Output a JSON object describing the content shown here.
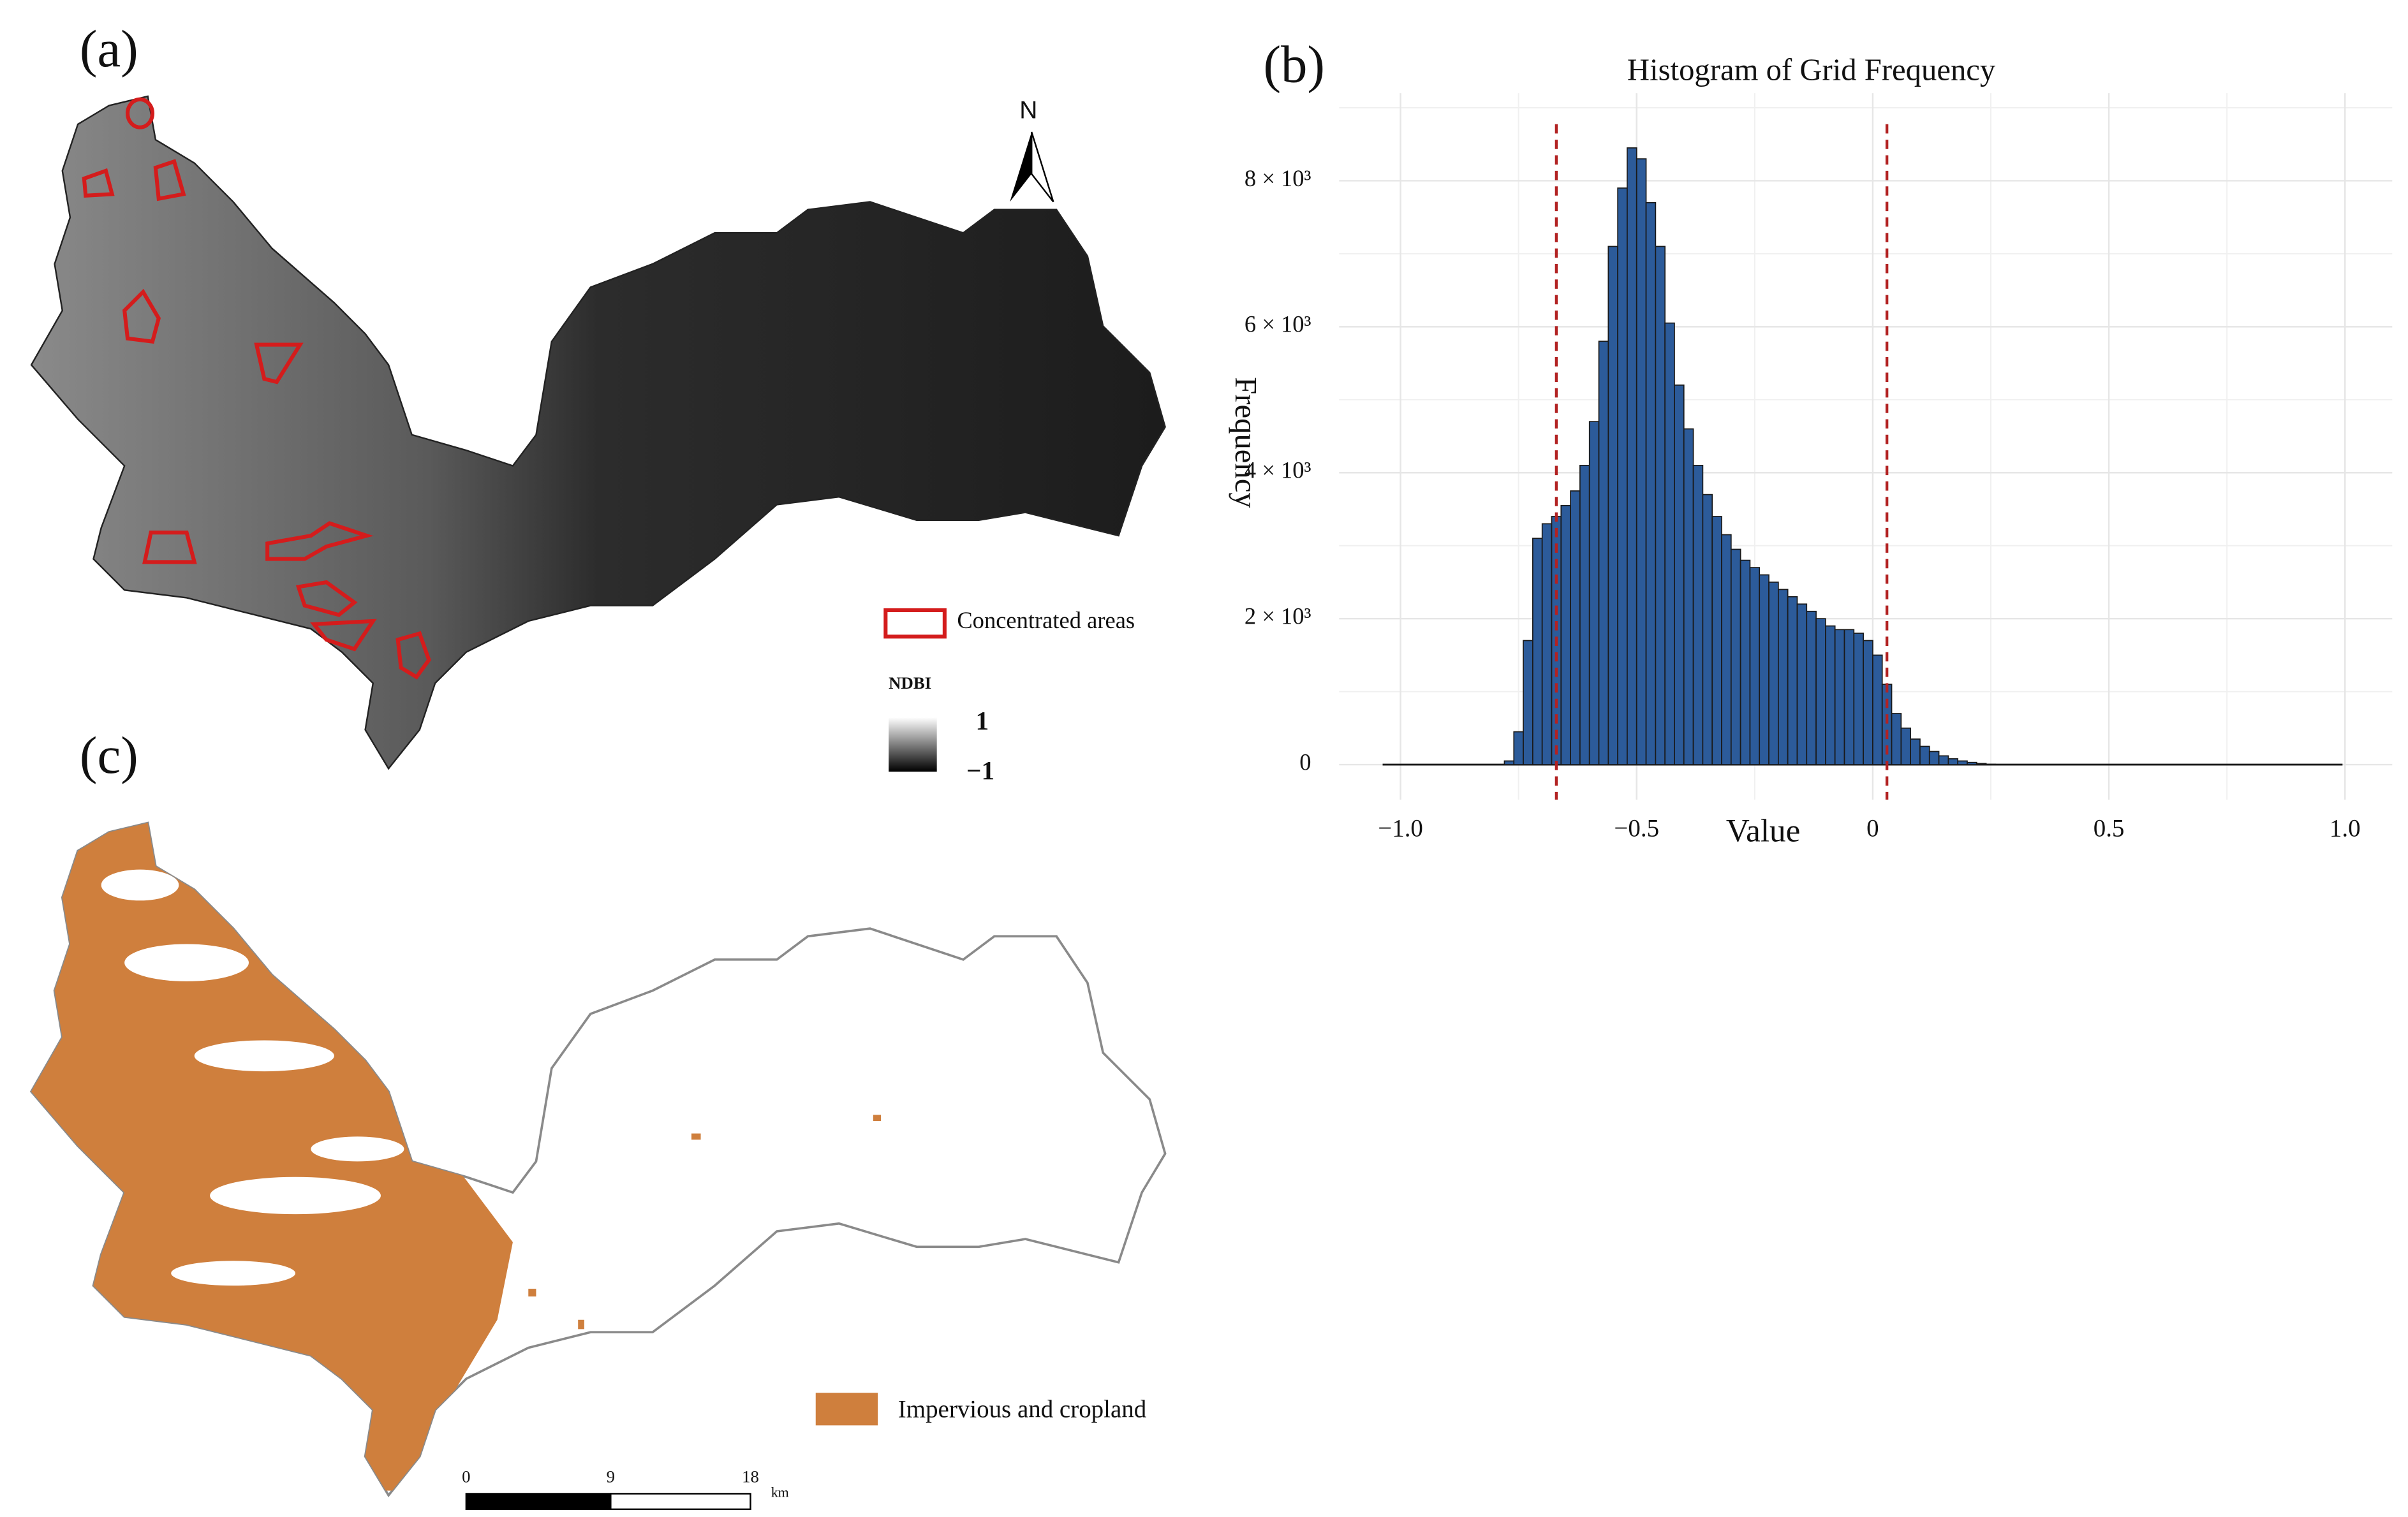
{
  "panel_labels": [
    "(a)",
    "(b)",
    "(c)"
  ],
  "map_a": {
    "north": "N",
    "legend": "Concentrated areas",
    "ndbi_title": "NDBI",
    "ndbi_max": "1",
    "ndbi_min": "−1"
  },
  "map_c": {
    "legend": "Impervious and cropland",
    "scale_labels": [
      "0",
      "9",
      "18"
    ],
    "scale_unit": "km"
  },
  "chart_data": {
    "type": "histogram",
    "title": "Histogram of Grid Frequency",
    "xlabel": "Value",
    "ylabel": "Frequency",
    "bins": [
      -0.78,
      -0.76,
      -0.74,
      -0.72,
      -0.7,
      -0.68,
      -0.66,
      -0.64,
      -0.62,
      -0.6,
      -0.58,
      -0.56,
      -0.54,
      -0.52,
      -0.5,
      -0.48,
      -0.46,
      -0.44,
      -0.42,
      -0.4,
      -0.38,
      -0.36,
      -0.34,
      -0.32,
      -0.3,
      -0.28,
      -0.26,
      -0.24,
      -0.22,
      -0.2,
      -0.18,
      -0.16,
      -0.14,
      -0.12,
      -0.1,
      -0.08,
      -0.06,
      -0.04,
      -0.02,
      0,
      0.02,
      0.04,
      0.06,
      0.08,
      0.1,
      0.12,
      0.14,
      0.16,
      0.18,
      0.2,
      0.22,
      0.24,
      0.26
    ],
    "values": [
      50,
      450,
      1700,
      3100,
      3300,
      3400,
      3550,
      3750,
      4100,
      4700,
      5800,
      7100,
      7900,
      8450,
      8300,
      7700,
      7100,
      6050,
      5200,
      4600,
      4100,
      3700,
      3400,
      3150,
      2950,
      2800,
      2700,
      2600,
      2500,
      2400,
      2300,
      2200,
      2100,
      2000,
      1900,
      1850,
      1850,
      1800,
      1700,
      1500,
      1100,
      700,
      500,
      350,
      250,
      180,
      120,
      80,
      50,
      30,
      15,
      5
    ],
    "color": "#2c5b9a",
    "edge_color": "#1a1a1a",
    "xlim": [
      -1.13,
      1.1
    ],
    "ylim": [
      -480,
      9200
    ],
    "xticks": [
      {
        "value": -1,
        "label": "−1.0"
      },
      {
        "value": -0.5,
        "label": "−0.5"
      },
      0,
      0.5,
      {
        "value": 1,
        "label": "1.0"
      }
    ],
    "yticks": [
      0,
      {
        "value": 2000,
        "label": "2 × 10³"
      },
      {
        "value": 4000,
        "label": "4 × 10³"
      },
      {
        "value": 6000,
        "label": "6 × 10³"
      },
      {
        "value": 8000,
        "label": "8 × 10³"
      }
    ],
    "x_minor_grid": [
      -0.75,
      -0.25,
      0.25,
      0.75
    ],
    "y_minor_grid": [
      1000,
      3000,
      5000,
      7000,
      9000
    ],
    "grid": true,
    "vlines": [
      -0.67,
      0.03
    ],
    "vline_color": "#b22222"
  }
}
